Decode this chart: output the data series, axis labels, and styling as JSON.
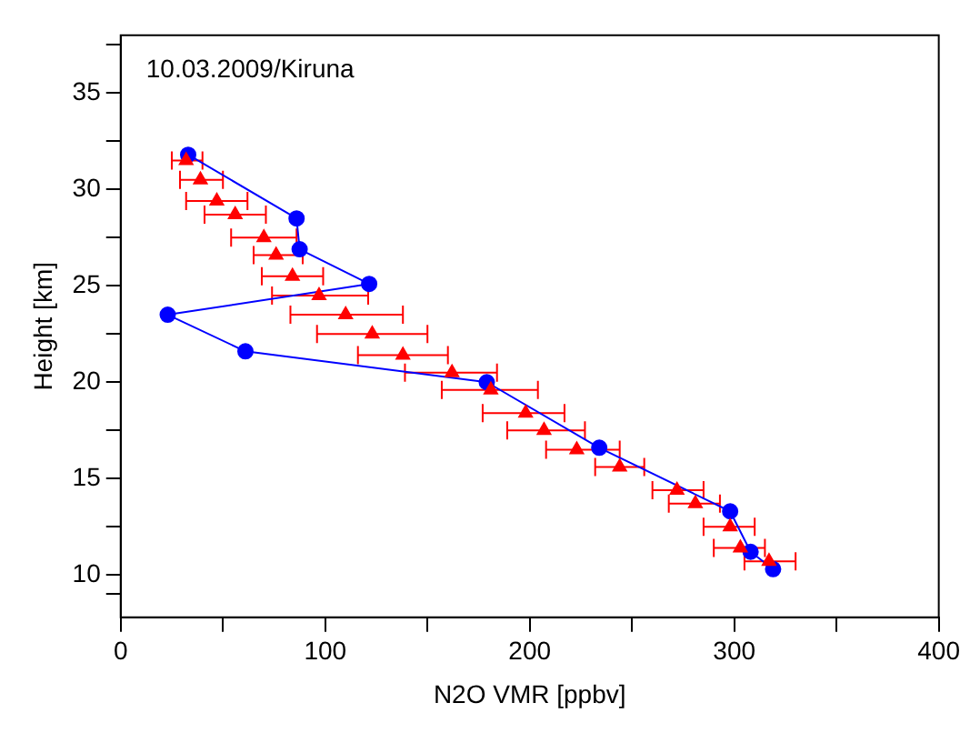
{
  "chart_data": {
    "type": "line",
    "title": "10.03.2009/Kiruna",
    "xlabel": "N2O VMR [ppbv]",
    "ylabel": "Height [km]",
    "xlim": [
      0,
      400
    ],
    "xticks": [
      0,
      {
        "value": 50,
        "label": null
      },
      100,
      {
        "value": 150,
        "label": null
      },
      200,
      {
        "value": 250,
        "label": null
      },
      300,
      {
        "value": 350,
        "label": null
      },
      400
    ],
    "ylim": [
      7.8,
      38
    ],
    "yticks": [
      {
        "value": 9,
        "label": null
      },
      10,
      {
        "value": 12.5,
        "label": null
      },
      15,
      {
        "value": 17.5,
        "label": null
      },
      20,
      {
        "value": 22.5,
        "label": null
      },
      25,
      {
        "value": 27.5,
        "label": null
      },
      30,
      {
        "value": 32.5,
        "label": null
      },
      35,
      {
        "value": 37.5,
        "label": null
      }
    ],
    "grid": false,
    "legend": false,
    "series": [
      {
        "color": "#0000ff",
        "marker": "circle",
        "line_style": "solid",
        "x": [
          33,
          86,
          87.5,
          121.5,
          23,
          61,
          179,
          234,
          298,
          308,
          319
        ],
        "values": [
          31.8,
          28.5,
          26.9,
          25.1,
          23.5,
          21.6,
          20.0,
          16.6,
          13.3,
          11.2,
          10.3
        ]
      },
      {
        "type": "scatter",
        "color": "#ff0000",
        "marker": "triangle",
        "x": [
          32,
          39,
          47,
          56,
          70,
          76,
          84,
          97,
          110,
          123,
          138,
          162,
          181,
          198,
          207,
          223,
          244,
          272,
          281,
          298,
          303,
          317
        ],
        "values": [
          31.5,
          30.5,
          29.4,
          28.7,
          27.5,
          26.6,
          25.5,
          24.5,
          23.5,
          22.5,
          21.4,
          20.5,
          19.6,
          18.4,
          17.5,
          16.5,
          15.6,
          14.4,
          13.7,
          12.5,
          11.4,
          10.7
        ],
        "xerrors": [
          [
            25,
            40
          ],
          [
            29,
            50
          ],
          [
            32,
            62
          ],
          [
            41,
            71
          ],
          [
            54,
            86
          ],
          [
            65,
            89
          ],
          [
            69,
            99
          ],
          [
            74,
            121
          ],
          [
            83,
            138
          ],
          [
            96,
            150
          ],
          [
            116,
            160
          ],
          [
            139,
            184
          ],
          [
            157,
            204
          ],
          [
            177,
            217
          ],
          [
            189,
            227
          ],
          [
            208,
            244
          ],
          [
            232,
            256
          ],
          [
            260,
            285
          ],
          [
            268,
            293
          ],
          [
            285,
            310
          ],
          [
            290,
            315
          ],
          [
            305,
            330
          ]
        ]
      }
    ]
  }
}
